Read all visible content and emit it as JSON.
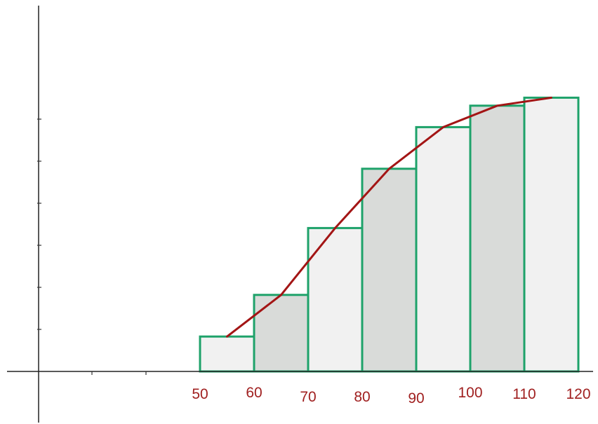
{
  "chart_data": {
    "type": "bar",
    "bins": [
      [
        50,
        60
      ],
      [
        60,
        70
      ],
      [
        70,
        80
      ],
      [
        80,
        90
      ],
      [
        90,
        100
      ],
      [
        100,
        110
      ],
      [
        110,
        120
      ]
    ],
    "values": [
      8.3,
      18.2,
      34.1,
      48.2,
      58.1,
      63.2,
      65.1
    ],
    "curve": {
      "x": [
        55,
        65,
        75,
        85,
        95,
        105,
        115
      ],
      "y": [
        8.3,
        18.2,
        34.1,
        48.2,
        58.1,
        63.2,
        65.1
      ]
    },
    "x_tick_labels": [
      "50",
      "60",
      "70",
      "80",
      "90",
      "100",
      "110",
      "120"
    ],
    "x_minor_ticks": [
      30,
      40
    ],
    "y_ticks": [
      10,
      20,
      30,
      40,
      50,
      60
    ],
    "xlim": [
      28,
      122
    ],
    "ylim": [
      0,
      69
    ],
    "grid": false,
    "colors": {
      "bar_fill_light": "#f1f1f1",
      "bar_fill_dark": "#d9dbd9",
      "bar_stroke": "#1ea26a",
      "curve": "#a31515",
      "tick_label": "#a02020"
    }
  }
}
